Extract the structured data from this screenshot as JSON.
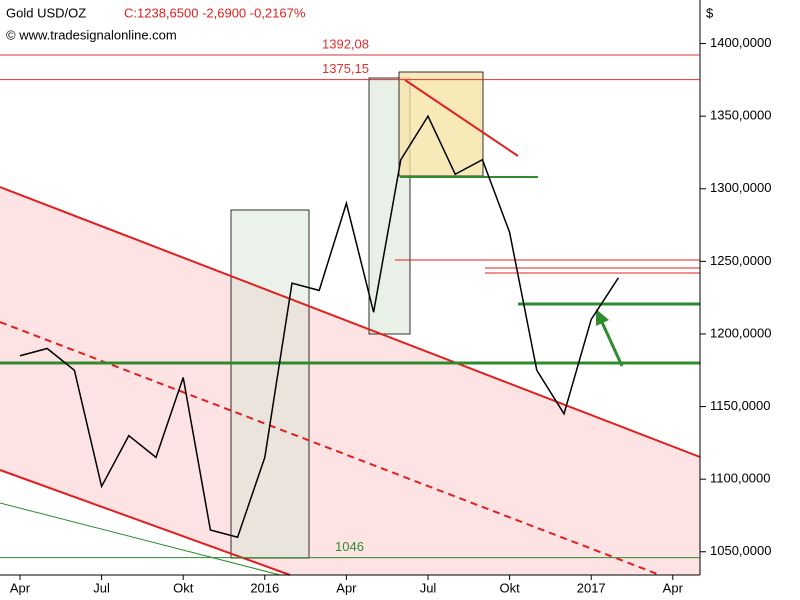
{
  "chart_data": {
    "type": "line",
    "title": "Gold USD/OZ",
    "subtitle": "C:1238,6500 -2,6900 -0,2167%",
    "source": "© www.tradesignalonline.com",
    "unit": "$",
    "categories": [
      "Apr",
      null,
      null,
      "Jul",
      null,
      null,
      "Okt",
      null,
      null,
      "2016",
      null,
      null,
      "Apr",
      null,
      null,
      "Jul",
      null,
      null,
      "Okt",
      null,
      null,
      "2017",
      null,
      null,
      "Apr",
      null
    ],
    "series": [
      {
        "name": "Gold USD/OZ",
        "color": "#000000",
        "values": [
          1185,
          1190,
          1175,
          1095,
          1130,
          1115,
          1170,
          1065,
          1060,
          1115,
          1235,
          1230,
          1290,
          1215,
          1320,
          1350,
          1310,
          1320,
          1270,
          1175,
          1145,
          1210,
          1238.65,
          null,
          null,
          null
        ]
      }
    ],
    "levels": [
      {
        "value": 1392.08,
        "label": "1392,08",
        "color": "#e03030"
      },
      {
        "value": 1375.15,
        "label": "1375,15",
        "color": "#e03030"
      },
      {
        "value": 1046,
        "label": "1046",
        "color": "#2e8b2e"
      }
    ],
    "ylim": [
      1034,
      1430
    ],
    "yticks": [
      {
        "value": 1050,
        "label": "1050,0000"
      },
      {
        "value": 1100,
        "label": "1100,0000"
      },
      {
        "value": 1150,
        "label": "1150,0000"
      },
      {
        "value": 1200,
        "label": "1200,0000"
      },
      {
        "value": 1250,
        "label": "1250,0000"
      },
      {
        "value": 1300,
        "label": "1300,0000"
      },
      {
        "value": 1350,
        "label": "1350,0000"
      },
      {
        "value": 1400,
        "label": "1400,0000"
      }
    ]
  }
}
